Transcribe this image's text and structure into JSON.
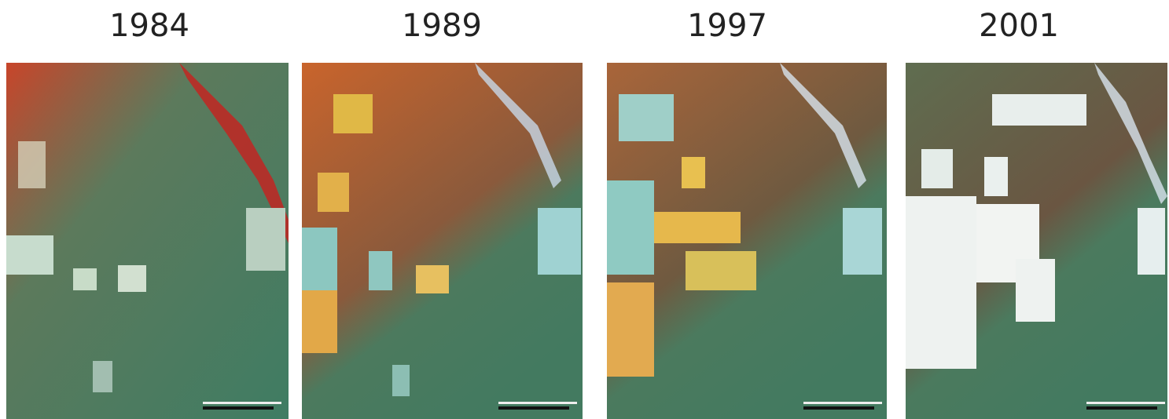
{
  "panels": [
    {
      "label": "1984"
    },
    {
      "label": "1989"
    },
    {
      "label": "1997"
    },
    {
      "label": "2001"
    }
  ]
}
